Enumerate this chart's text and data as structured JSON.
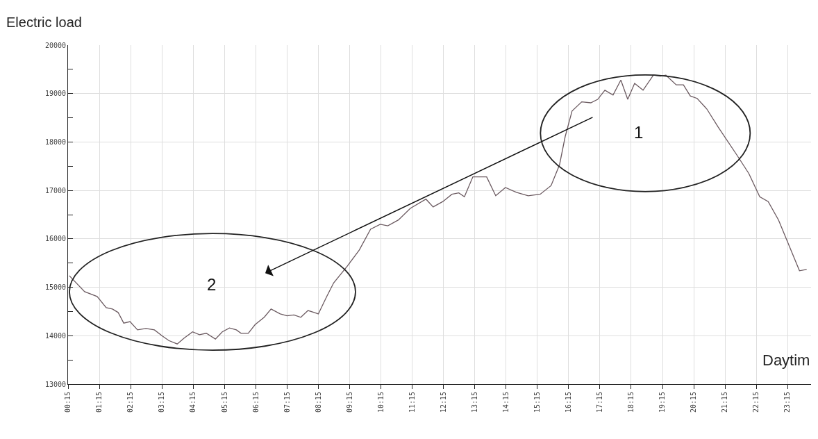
{
  "chart_data": {
    "type": "line",
    "ylabel": "Electric load",
    "xlabel": "Daytim",
    "x": [
      0.29,
      0.78,
      1.18,
      1.47,
      1.67,
      1.85,
      2.03,
      2.23,
      2.47,
      2.74,
      3.01,
      3.25,
      3.47,
      3.74,
      3.96,
      4.23,
      4.45,
      4.67,
      4.96,
      5.18,
      5.41,
      5.63,
      5.78,
      6.01,
      6.23,
      6.52,
      6.74,
      7.03,
      7.25,
      7.47,
      7.69,
      7.92,
      8.12,
      8.25,
      8.52,
      8.74,
      9.18,
      9.56,
      9.92,
      10.23,
      10.47,
      10.81,
      11.19,
      11.69,
      11.92,
      12.23,
      12.52,
      12.74,
      12.92,
      13.19,
      13.34,
      13.63,
      13.92,
      14.23,
      14.58,
      14.96,
      15.34,
      15.69,
      15.96,
      16.14,
      16.36,
      16.67,
      16.96,
      17.18,
      17.41,
      17.67,
      17.92,
      18.14,
      18.36,
      18.63,
      18.96,
      19.18,
      19.36,
      19.69,
      19.92,
      20.14,
      20.36,
      20.67,
      21.03,
      21.63,
      22.01,
      22.36,
      22.63,
      22.96,
      23.63,
      23.86
    ],
    "series": [
      {
        "color": "#6b5a60",
        "values": [
          15240,
          14910,
          14810,
          14580,
          14550,
          14480,
          14260,
          14290,
          14120,
          14150,
          14120,
          14000,
          13900,
          13830,
          13950,
          14080,
          14020,
          14050,
          13930,
          14080,
          14160,
          14120,
          14050,
          14050,
          14230,
          14380,
          14550,
          14450,
          14410,
          14430,
          14380,
          14520,
          14480,
          14450,
          14810,
          15090,
          15440,
          15770,
          16200,
          16300,
          16270,
          16390,
          16630,
          16820,
          16660,
          16770,
          16920,
          16950,
          16870,
          17280,
          17280,
          17280,
          16890,
          17060,
          16960,
          16890,
          16920,
          17100,
          17530,
          18110,
          18640,
          18830,
          18810,
          18880,
          19070,
          18970,
          19280,
          18880,
          19210,
          19070,
          19380,
          19360,
          19380,
          19180,
          19180,
          18950,
          18900,
          18680,
          18310,
          17730,
          17350,
          16870,
          16770,
          16390,
          15340,
          15370
        ]
      }
    ],
    "xlim": [
      0.25,
      24.0
    ],
    "xticks": [
      {
        "value": 0.25,
        "label": "00:15"
      },
      {
        "value": 1.25,
        "label": "01:15"
      },
      {
        "value": 2.25,
        "label": "02:15"
      },
      {
        "value": 3.25,
        "label": "03:15"
      },
      {
        "value": 4.25,
        "label": "04:15"
      },
      {
        "value": 5.25,
        "label": "05:15"
      },
      {
        "value": 6.25,
        "label": "06:15"
      },
      {
        "value": 7.25,
        "label": "07:15"
      },
      {
        "value": 8.25,
        "label": "08:15"
      },
      {
        "value": 9.25,
        "label": "09:15"
      },
      {
        "value": 10.25,
        "label": "10:15"
      },
      {
        "value": 11.25,
        "label": "11:15"
      },
      {
        "value": 12.25,
        "label": "12:15"
      },
      {
        "value": 13.25,
        "label": "13:15"
      },
      {
        "value": 14.25,
        "label": "14:15"
      },
      {
        "value": 15.25,
        "label": "15:15"
      },
      {
        "value": 16.25,
        "label": "16:15"
      },
      {
        "value": 17.25,
        "label": "17:15"
      },
      {
        "value": 18.25,
        "label": "18:15"
      },
      {
        "value": 19.25,
        "label": "19:15"
      },
      {
        "value": 20.25,
        "label": "20:15"
      },
      {
        "value": 21.25,
        "label": "21:15"
      },
      {
        "value": 22.25,
        "label": "22:15"
      },
      {
        "value": 23.25,
        "label": "23:15"
      }
    ],
    "ylim": [
      13000,
      20000
    ],
    "yticks": [
      13000,
      {
        "value": 13500,
        "label": null
      },
      14000,
      {
        "value": 14500,
        "label": null
      },
      15000,
      {
        "value": 15500,
        "label": null
      },
      16000,
      {
        "value": 16500,
        "label": null
      },
      17000,
      {
        "value": 17500,
        "label": null
      },
      18000,
      {
        "value": 18500,
        "label": null
      },
      19000,
      {
        "value": 19500,
        "label": null
      },
      20000
    ],
    "grid": true,
    "marker": "none",
    "line_style": "solid",
    "annotations": [
      "1",
      "2"
    ]
  }
}
